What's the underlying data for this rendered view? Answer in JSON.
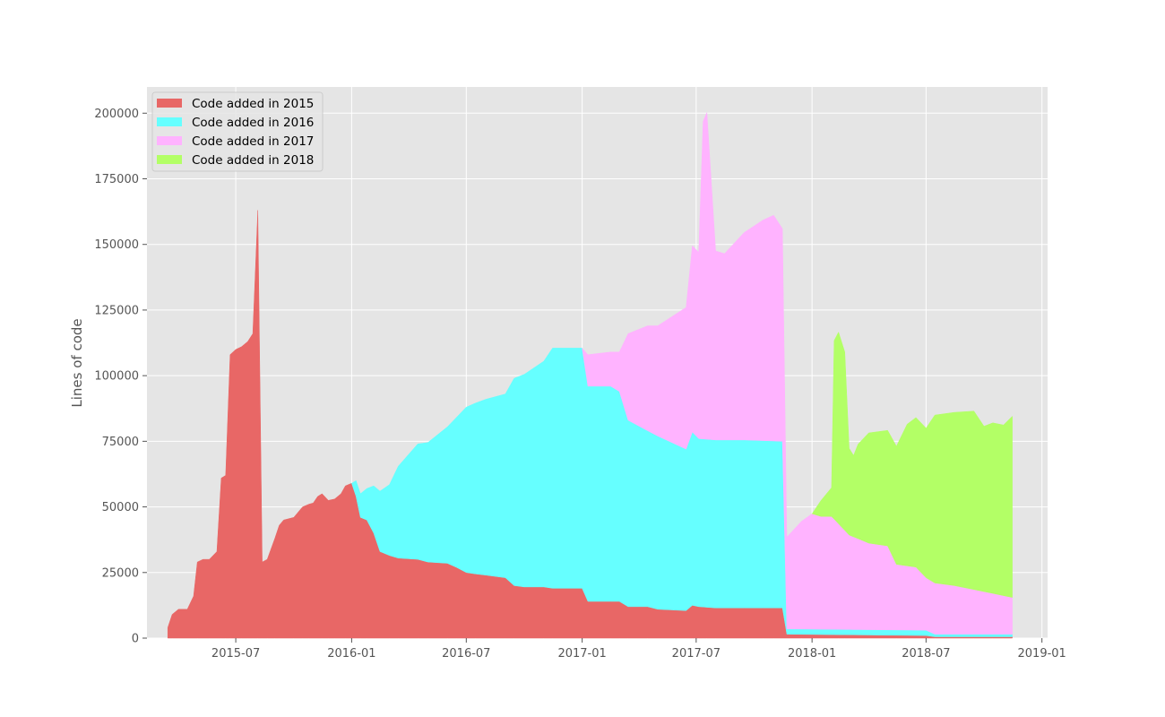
{
  "chart_data": {
    "type": "area",
    "stacked": true,
    "title": "",
    "xlabel": "",
    "ylabel": "Lines of code",
    "xlim": [
      "2015-02-10",
      "2019-01-10"
    ],
    "ylim": [
      0,
      210000
    ],
    "x_ticks": [
      "2015-07",
      "2016-01",
      "2016-07",
      "2017-01",
      "2017-07",
      "2018-01",
      "2018-07",
      "2019-01"
    ],
    "y_ticks": [
      0,
      25000,
      50000,
      75000,
      100000,
      125000,
      150000,
      175000,
      200000
    ],
    "grid": true,
    "legend_position": "top-left",
    "series": [
      {
        "name": "Code added in 2015",
        "color": "#e86766",
        "points": [
          [
            "2015-03-15",
            4000
          ],
          [
            "2015-03-22",
            9000
          ],
          [
            "2015-04-01",
            11000
          ],
          [
            "2015-04-15",
            11000
          ],
          [
            "2015-04-25",
            16000
          ],
          [
            "2015-05-01",
            29000
          ],
          [
            "2015-05-10",
            30000
          ],
          [
            "2015-05-20",
            30000
          ],
          [
            "2015-06-01",
            33000
          ],
          [
            "2015-06-08",
            61000
          ],
          [
            "2015-06-15",
            62000
          ],
          [
            "2015-06-22",
            108000
          ],
          [
            "2015-07-01",
            110000
          ],
          [
            "2015-07-10",
            111000
          ],
          [
            "2015-07-20",
            113000
          ],
          [
            "2015-07-28",
            116000
          ],
          [
            "2015-08-05",
            163000
          ],
          [
            "2015-08-12",
            29000
          ],
          [
            "2015-08-20",
            30000
          ],
          [
            "2015-09-01",
            38000
          ],
          [
            "2015-09-08",
            43000
          ],
          [
            "2015-09-15",
            45000
          ],
          [
            "2015-10-01",
            46000
          ],
          [
            "2015-10-15",
            50000
          ],
          [
            "2015-10-25",
            51000
          ],
          [
            "2015-11-01",
            51500
          ],
          [
            "2015-11-08",
            54000
          ],
          [
            "2015-11-15",
            55000
          ],
          [
            "2015-11-25",
            52500
          ],
          [
            "2015-12-05",
            53000
          ],
          [
            "2015-12-15",
            55000
          ],
          [
            "2015-12-22",
            58000
          ],
          [
            "2016-01-01",
            59000
          ],
          [
            "2016-01-08",
            54000
          ],
          [
            "2016-01-15",
            46000
          ],
          [
            "2016-01-25",
            45000
          ],
          [
            "2016-02-05",
            40000
          ],
          [
            "2016-02-15",
            33000
          ],
          [
            "2016-03-01",
            31500
          ],
          [
            "2016-03-15",
            30500
          ],
          [
            "2016-04-15",
            30000
          ],
          [
            "2016-05-01",
            29000
          ],
          [
            "2016-06-01",
            28500
          ],
          [
            "2016-06-15",
            27000
          ],
          [
            "2016-07-01",
            25000
          ],
          [
            "2016-07-15",
            24500
          ],
          [
            "2016-08-01",
            24000
          ],
          [
            "2016-09-01",
            23000
          ],
          [
            "2016-09-15",
            20000
          ],
          [
            "2016-10-01",
            19500
          ],
          [
            "2016-11-01",
            19500
          ],
          [
            "2016-11-15",
            19000
          ],
          [
            "2017-01-01",
            19000
          ],
          [
            "2017-01-10",
            14000
          ],
          [
            "2017-02-15",
            14000
          ],
          [
            "2017-03-01",
            14000
          ],
          [
            "2017-03-15",
            12000
          ],
          [
            "2017-04-15",
            12000
          ],
          [
            "2017-05-01",
            11000
          ],
          [
            "2017-06-15",
            10500
          ],
          [
            "2017-06-25",
            12500
          ],
          [
            "2017-07-05",
            12000
          ],
          [
            "2017-08-01",
            11500
          ],
          [
            "2017-09-15",
            11500
          ],
          [
            "2017-11-15",
            11500
          ],
          [
            "2017-11-22",
            1500
          ],
          [
            "2018-07-01",
            1000
          ],
          [
            "2018-07-15",
            500
          ],
          [
            "2018-11-15",
            500
          ]
        ]
      },
      {
        "name": "Code added in 2016",
        "color": "#66ffff",
        "points": [
          [
            "2016-01-01",
            0
          ],
          [
            "2016-01-08",
            6000
          ],
          [
            "2016-01-15",
            9000
          ],
          [
            "2016-01-25",
            12000
          ],
          [
            "2016-02-05",
            18000
          ],
          [
            "2016-02-15",
            23000
          ],
          [
            "2016-03-01",
            27000
          ],
          [
            "2016-03-15",
            35000
          ],
          [
            "2016-04-15",
            44000
          ],
          [
            "2016-05-01",
            45500
          ],
          [
            "2016-06-01",
            52000
          ],
          [
            "2016-06-15",
            57000
          ],
          [
            "2016-07-01",
            63000
          ],
          [
            "2016-07-15",
            65000
          ],
          [
            "2016-08-01",
            67000
          ],
          [
            "2016-09-01",
            70000
          ],
          [
            "2016-09-15",
            79000
          ],
          [
            "2016-10-01",
            81000
          ],
          [
            "2016-11-01",
            86000
          ],
          [
            "2016-11-15",
            91500
          ],
          [
            "2017-01-01",
            91500
          ],
          [
            "2017-01-10",
            82000
          ],
          [
            "2017-02-15",
            82000
          ],
          [
            "2017-03-01",
            80000
          ],
          [
            "2017-03-15",
            71000
          ],
          [
            "2017-04-15",
            67000
          ],
          [
            "2017-05-01",
            66000
          ],
          [
            "2017-06-15",
            61500
          ],
          [
            "2017-06-25",
            66000
          ],
          [
            "2017-07-05",
            64000
          ],
          [
            "2017-08-01",
            64000
          ],
          [
            "2017-09-15",
            64000
          ],
          [
            "2017-11-15",
            63500
          ],
          [
            "2017-11-22",
            2000
          ],
          [
            "2018-07-01",
            2000
          ],
          [
            "2018-07-15",
            1000
          ],
          [
            "2018-11-15",
            1000
          ]
        ]
      },
      {
        "name": "Code added in 2017",
        "color": "#ffb3ff",
        "points": [
          [
            "2017-01-01",
            0
          ],
          [
            "2017-01-10",
            12000
          ],
          [
            "2017-02-15",
            13000
          ],
          [
            "2017-03-01",
            15000
          ],
          [
            "2017-03-15",
            33000
          ],
          [
            "2017-04-15",
            40000
          ],
          [
            "2017-05-01",
            42000
          ],
          [
            "2017-06-15",
            54000
          ],
          [
            "2017-06-25",
            71000
          ],
          [
            "2017-07-05",
            71000
          ],
          [
            "2017-07-12",
            121000
          ],
          [
            "2017-07-18",
            124500
          ],
          [
            "2017-08-01",
            72000
          ],
          [
            "2017-08-15",
            71000
          ],
          [
            "2017-09-15",
            79000
          ],
          [
            "2017-10-15",
            84000
          ],
          [
            "2017-11-01",
            86000
          ],
          [
            "2017-11-15",
            81000
          ],
          [
            "2017-11-22",
            35000
          ],
          [
            "2017-12-15",
            41000
          ],
          [
            "2018-01-01",
            44000
          ],
          [
            "2018-01-15",
            43000
          ],
          [
            "2018-02-01",
            43000
          ],
          [
            "2018-03-01",
            36000
          ],
          [
            "2018-04-01",
            33000
          ],
          [
            "2018-05-01",
            32000
          ],
          [
            "2018-05-15",
            25000
          ],
          [
            "2018-06-15",
            24000
          ],
          [
            "2018-07-01",
            20000
          ],
          [
            "2018-07-15",
            19500
          ],
          [
            "2018-08-15",
            18500
          ],
          [
            "2018-09-15",
            17000
          ],
          [
            "2018-11-15",
            14000
          ]
        ]
      },
      {
        "name": "Code added in 2018",
        "color": "#b3ff66",
        "points": [
          [
            "2018-01-01",
            0
          ],
          [
            "2018-01-15",
            6000
          ],
          [
            "2018-02-01",
            11000
          ],
          [
            "2018-02-05",
            68000
          ],
          [
            "2018-02-12",
            73000
          ],
          [
            "2018-02-22",
            68000
          ],
          [
            "2018-03-01",
            33000
          ],
          [
            "2018-03-08",
            31000
          ],
          [
            "2018-03-15",
            36000
          ],
          [
            "2018-04-01",
            42000
          ],
          [
            "2018-05-01",
            44000
          ],
          [
            "2018-05-15",
            45000
          ],
          [
            "2018-06-01",
            54000
          ],
          [
            "2018-06-15",
            57000
          ],
          [
            "2018-07-01",
            57000
          ],
          [
            "2018-07-15",
            64000
          ],
          [
            "2018-08-15",
            66000
          ],
          [
            "2018-09-15",
            68000
          ],
          [
            "2018-10-01",
            63000
          ],
          [
            "2018-10-15",
            65000
          ],
          [
            "2018-11-01",
            65000
          ],
          [
            "2018-11-15",
            69000
          ]
        ]
      }
    ]
  }
}
